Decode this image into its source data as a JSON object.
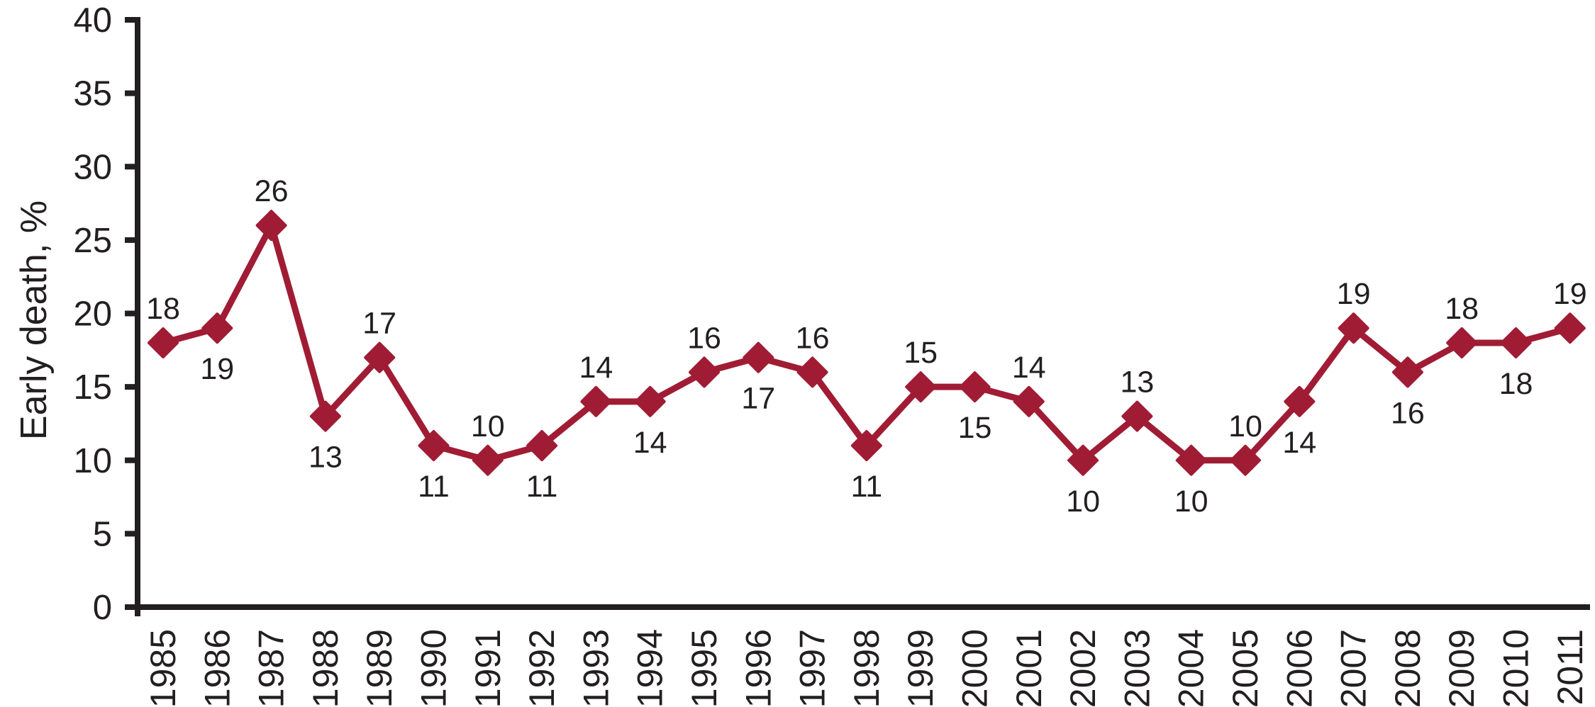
{
  "chart_data": {
    "type": "line",
    "title": "",
    "xlabel": "",
    "ylabel": "Early death, %",
    "categories": [
      "1985",
      "1986",
      "1987",
      "1988",
      "1989",
      "1990",
      "1991",
      "1992",
      "1993",
      "1994",
      "1995",
      "1996",
      "1997",
      "1998",
      "1999",
      "2000",
      "2001",
      "2002",
      "2003",
      "2004",
      "2005",
      "2006",
      "2007",
      "2008",
      "2009",
      "2010",
      "2011"
    ],
    "values": [
      18,
      19,
      26,
      13,
      17,
      11,
      10,
      11,
      14,
      14,
      16,
      17,
      16,
      11,
      15,
      15,
      14,
      10,
      13,
      10,
      10,
      14,
      19,
      16,
      18,
      18,
      19
    ],
    "data_labels": [
      18,
      19,
      26,
      13,
      17,
      11,
      10,
      11,
      14,
      14,
      16,
      17,
      16,
      11,
      15,
      15,
      14,
      10,
      13,
      10,
      10,
      14,
      19,
      16,
      18,
      18,
      19
    ],
    "data_label_placement": "alternating, first point above then below",
    "y_ticks": [
      0,
      5,
      10,
      15,
      20,
      25,
      30,
      35,
      40
    ],
    "ylim": [
      0,
      40
    ],
    "grid": "off",
    "legend": "none",
    "marker": "diamond",
    "colors": {
      "line": "#A01C34",
      "marker": "#A01C34",
      "axis": "#231F20",
      "text": "#231F20"
    }
  }
}
